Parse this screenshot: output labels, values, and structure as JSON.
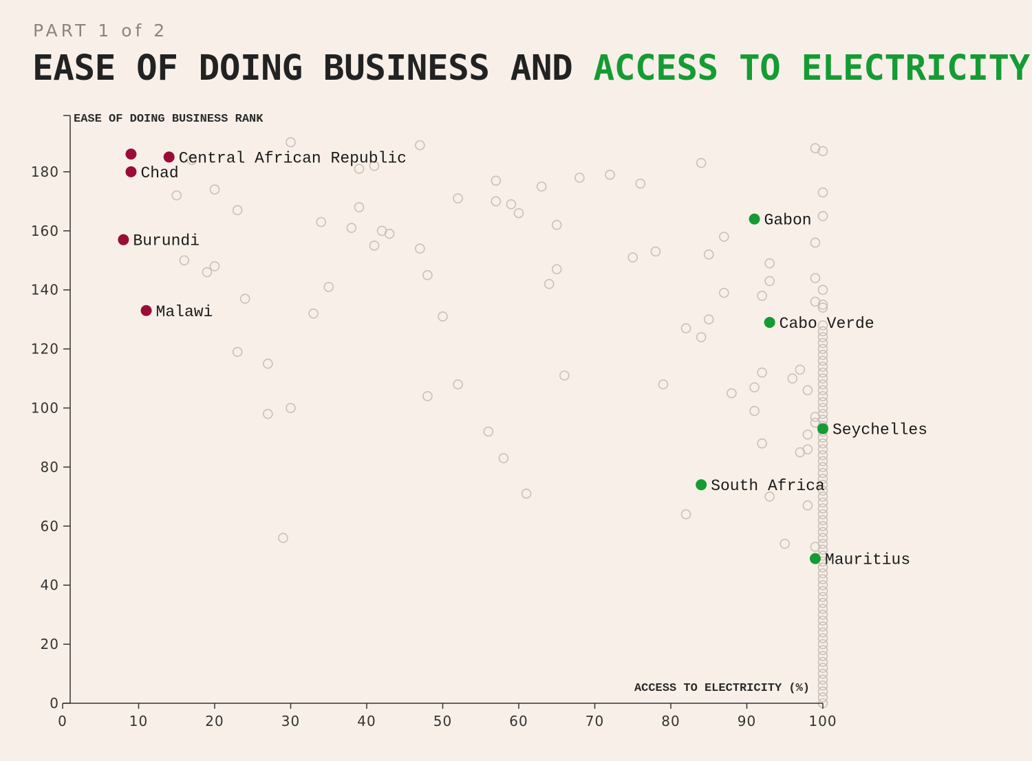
{
  "header": {
    "part": "PART 1 of 2",
    "title_main": "EASE OF DOING BUSINESS AND ",
    "title_accent": "ACCESS TO ELECTRICITY"
  },
  "colors": {
    "background": "#f8f0e8",
    "low_access": "#9b0d36",
    "high_access": "#159b34",
    "other": "#c9bfb9",
    "axis": "#333333"
  },
  "chart_data": {
    "type": "scatter",
    "xlabel": "ACCESS TO ELECTRICITY (%)",
    "ylabel": "EASE OF DOING BUSINESS RANK",
    "xlim": [
      0,
      100
    ],
    "ylim": [
      0,
      190
    ],
    "x_ticks": [
      "0",
      "10",
      "20",
      "30",
      "40",
      "50",
      "60",
      "70",
      "80",
      "90",
      "100"
    ],
    "y_ticks": [
      "0",
      "20",
      "40",
      "60",
      "80",
      "100",
      "120",
      "140",
      "160",
      "180"
    ],
    "grid": false,
    "highlighted": [
      {
        "label": "",
        "x": 9,
        "y": 186,
        "group": "low"
      },
      {
        "label": "Central African Republic",
        "x": 14,
        "y": 185,
        "group": "low"
      },
      {
        "label": "Chad",
        "x": 9,
        "y": 180,
        "group": "low"
      },
      {
        "label": "Burundi",
        "x": 8,
        "y": 157,
        "group": "low"
      },
      {
        "label": "Malawi",
        "x": 11,
        "y": 133,
        "group": "low"
      },
      {
        "label": "Gabon",
        "x": 91,
        "y": 164,
        "group": "high"
      },
      {
        "label": "Cabo Verde",
        "x": 93,
        "y": 129,
        "group": "high"
      },
      {
        "label": "Seychelles",
        "x": 100,
        "y": 93,
        "group": "high"
      },
      {
        "label": "South Africa",
        "x": 84,
        "y": 74,
        "group": "high"
      },
      {
        "label": "Mauritius",
        "x": 99,
        "y": 49,
        "group": "high"
      }
    ],
    "others": [
      [
        30,
        190
      ],
      [
        47,
        189
      ],
      [
        17,
        184
      ],
      [
        39,
        181
      ],
      [
        41,
        182
      ],
      [
        15,
        172
      ],
      [
        20,
        174
      ],
      [
        23,
        167
      ],
      [
        34,
        163
      ],
      [
        38,
        161
      ],
      [
        39,
        168
      ],
      [
        42,
        160
      ],
      [
        43,
        159
      ],
      [
        41,
        155
      ],
      [
        47,
        154
      ],
      [
        52,
        171
      ],
      [
        57,
        177
      ],
      [
        57,
        170
      ],
      [
        59,
        169
      ],
      [
        60,
        166
      ],
      [
        63,
        175
      ],
      [
        65,
        162
      ],
      [
        68,
        178
      ],
      [
        72,
        179
      ],
      [
        76,
        176
      ],
      [
        84,
        183
      ],
      [
        99,
        188
      ],
      [
        100,
        187
      ],
      [
        100,
        173
      ],
      [
        100,
        165
      ],
      [
        16,
        150
      ],
      [
        19,
        146
      ],
      [
        20,
        148
      ],
      [
        24,
        137
      ],
      [
        35,
        141
      ],
      [
        33,
        132
      ],
      [
        48,
        145
      ],
      [
        50,
        131
      ],
      [
        64,
        142
      ],
      [
        65,
        147
      ],
      [
        75,
        151
      ],
      [
        78,
        153
      ],
      [
        85,
        152
      ],
      [
        87,
        158
      ],
      [
        87,
        139
      ],
      [
        85,
        130
      ],
      [
        82,
        127
      ],
      [
        84,
        124
      ],
      [
        92,
        138
      ],
      [
        93,
        143
      ],
      [
        93,
        149
      ],
      [
        99,
        156
      ],
      [
        99,
        144
      ],
      [
        100,
        140
      ],
      [
        99,
        136
      ],
      [
        100,
        134
      ],
      [
        100,
        135
      ],
      [
        23,
        119
      ],
      [
        27,
        115
      ],
      [
        27,
        98
      ],
      [
        30,
        100
      ],
      [
        48,
        104
      ],
      [
        52,
        108
      ],
      [
        56,
        92
      ],
      [
        58,
        83
      ],
      [
        61,
        71
      ],
      [
        66,
        111
      ],
      [
        79,
        108
      ],
      [
        88,
        105
      ],
      [
        91,
        107
      ],
      [
        91,
        99
      ],
      [
        92,
        112
      ],
      [
        92,
        88
      ],
      [
        93,
        70
      ],
      [
        95,
        54
      ],
      [
        96,
        110
      ],
      [
        97,
        113
      ],
      [
        97,
        85
      ],
      [
        98,
        106
      ],
      [
        98,
        91
      ],
      [
        98,
        86
      ],
      [
        98,
        67
      ],
      [
        99,
        97
      ],
      [
        99,
        95
      ],
      [
        99,
        53
      ],
      [
        82,
        64
      ],
      [
        29,
        56
      ]
    ]
  }
}
